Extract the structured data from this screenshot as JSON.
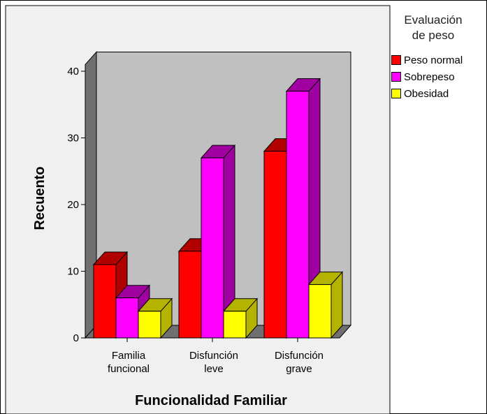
{
  "chart_data": {
    "type": "bar",
    "xlabel": "Funcionalidad Familiar",
    "ylabel": "Recuento",
    "categories": [
      [
        "Familia",
        "funcional"
      ],
      [
        "Disfunción",
        "leve"
      ],
      [
        "Disfunción",
        "grave"
      ]
    ],
    "series": [
      {
        "name": "Peso normal",
        "values": [
          11,
          13,
          28
        ],
        "color": "#ff0000",
        "side_color": "#b00000",
        "top_color": "#b00000"
      },
      {
        "name": "Sobrepeso",
        "values": [
          6,
          27,
          37
        ],
        "color": "#ff00ff",
        "side_color": "#a000a0",
        "top_color": "#a000a0"
      },
      {
        "name": "Obesidad",
        "values": [
          4,
          4,
          8
        ],
        "color": "#ffff00",
        "side_color": "#b4b400",
        "top_color": "#b4b400"
      }
    ],
    "ylim": [
      0,
      40
    ],
    "yticks": [
      0,
      10,
      20,
      30,
      40
    ],
    "legend": {
      "title_lines": [
        "Evaluación",
        "de peso"
      ],
      "placement": "right"
    },
    "background_color": "#c0c0c0",
    "frame_color": "#f0f0f0",
    "grid": false
  }
}
